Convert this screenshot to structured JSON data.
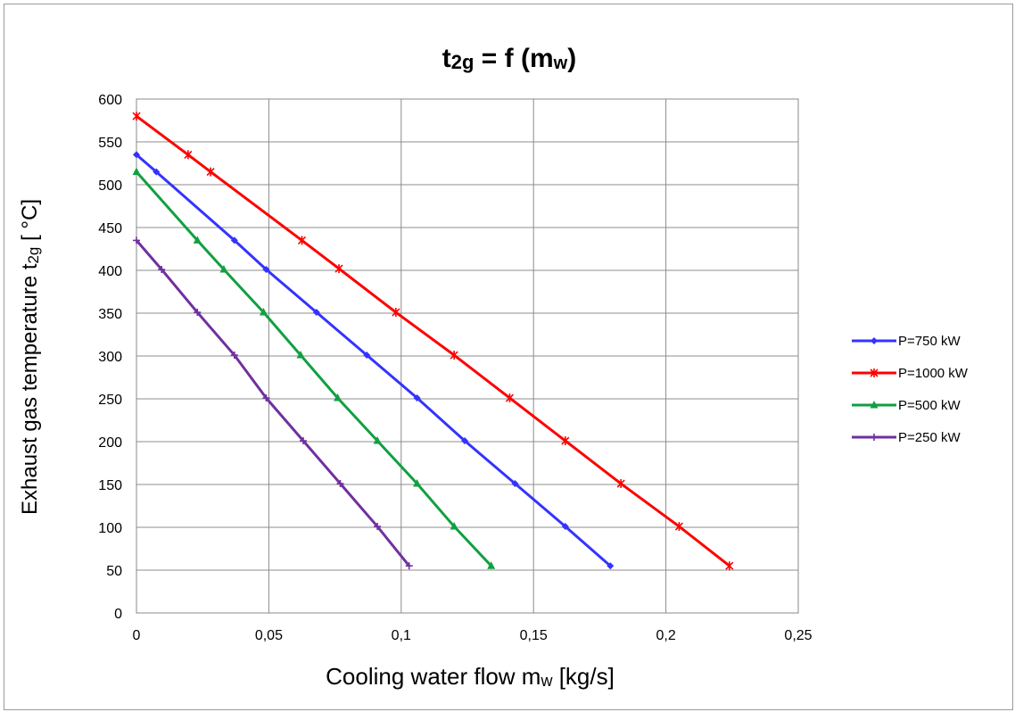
{
  "chart_data": {
    "type": "line",
    "title": {
      "main": "t",
      "sub": "2g",
      "eq": " = f (m",
      "sub2": "w",
      "close": ")"
    },
    "ylabel": {
      "pre": "Exhaust gas temperature t",
      "sub": "2g",
      "post": " [ °C]"
    },
    "xlabel": {
      "pre": "Cooling water flow  m",
      "sub": "w",
      "post": " [kg/s]"
    },
    "xlim": [
      0,
      0.25
    ],
    "ylim": [
      0,
      600
    ],
    "xticks": [
      0,
      0.05,
      0.1,
      0.15,
      0.2,
      0.25
    ],
    "xtick_labels": [
      "0",
      "0,05",
      "0,1",
      "0,15",
      "0,2",
      "0,25"
    ],
    "yticks": [
      0,
      50,
      100,
      150,
      200,
      250,
      300,
      350,
      400,
      450,
      500,
      550,
      600
    ],
    "ytick_labels": [
      "0",
      "50",
      "100",
      "150",
      "200",
      "250",
      "300",
      "350",
      "400",
      "450",
      "500",
      "550",
      "600"
    ],
    "grid": true,
    "legend_position": "right",
    "series": [
      {
        "name": "P=750 kW",
        "color": "#3333ff",
        "marker": "diamond",
        "points": [
          [
            0,
            535
          ],
          [
            0.0075,
            515
          ],
          [
            0.037,
            435
          ],
          [
            0.049,
            401
          ],
          [
            0.068,
            351
          ],
          [
            0.087,
            301
          ],
          [
            0.106,
            251
          ],
          [
            0.124,
            201
          ],
          [
            0.143,
            151
          ],
          [
            0.162,
            101
          ],
          [
            0.179,
            55
          ]
        ]
      },
      {
        "name": "P=1000 kW",
        "color": "#ff0000",
        "marker": "asterisk",
        "points": [
          [
            0,
            580
          ],
          [
            0.0195,
            535
          ],
          [
            0.028,
            515
          ],
          [
            0.0625,
            435
          ],
          [
            0.0765,
            402
          ],
          [
            0.098,
            351
          ],
          [
            0.12,
            301
          ],
          [
            0.141,
            251
          ],
          [
            0.162,
            201
          ],
          [
            0.183,
            151
          ],
          [
            0.205,
            101
          ],
          [
            0.224,
            55
          ]
        ]
      },
      {
        "name": "P=500 kW",
        "color": "#10a040",
        "marker": "triangle",
        "points": [
          [
            0,
            515
          ],
          [
            0.023,
            435
          ],
          [
            0.033,
            401
          ],
          [
            0.048,
            351
          ],
          [
            0.062,
            301
          ],
          [
            0.076,
            251
          ],
          [
            0.091,
            201
          ],
          [
            0.106,
            151
          ],
          [
            0.12,
            101
          ],
          [
            0.134,
            55
          ]
        ]
      },
      {
        "name": "P=250 kW",
        "color": "#7030a0",
        "marker": "plus",
        "points": [
          [
            0,
            435
          ],
          [
            0.0095,
            401
          ],
          [
            0.023,
            351
          ],
          [
            0.037,
            301
          ],
          [
            0.049,
            251
          ],
          [
            0.063,
            201
          ],
          [
            0.077,
            151
          ],
          [
            0.091,
            101
          ],
          [
            0.103,
            55
          ]
        ]
      }
    ]
  }
}
